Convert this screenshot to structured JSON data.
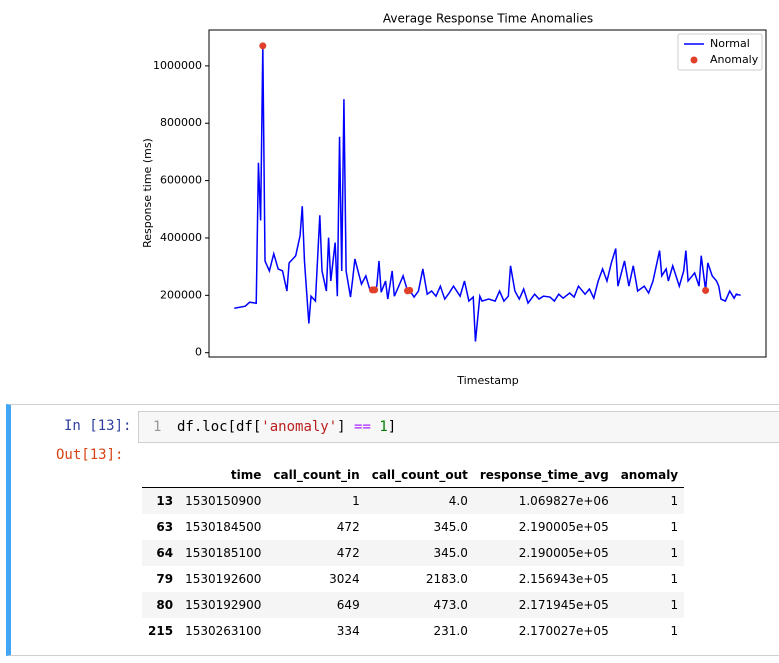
{
  "chart_data": {
    "type": "line",
    "title": "Average Response Time Anomalies",
    "x_label": "Timestamp",
    "y_label": "Response time (ms)",
    "xlim": [
      -11.55,
      242.55
    ],
    "ylim": [
      -15000,
      1125000
    ],
    "yticks": [
      0,
      200000,
      400000,
      600000,
      800000,
      1000000
    ],
    "legend": "upper right",
    "series": [
      {
        "name": "Normal",
        "type": "line",
        "color": "#0000ff",
        "x": [
          0,
          5,
          7,
          10,
          11,
          12,
          13,
          14,
          16,
          18,
          20,
          22,
          24,
          25,
          28,
          30,
          31,
          32,
          34,
          35,
          37,
          39,
          40,
          42,
          43,
          44,
          46,
          47,
          48,
          49,
          50,
          51,
          53,
          54,
          55,
          57,
          58,
          60,
          62,
          63,
          64,
          65,
          66,
          67,
          69,
          70,
          72,
          73,
          75,
          77,
          79,
          80,
          82,
          84,
          86,
          88,
          90,
          92,
          94,
          96,
          98,
          100,
          103,
          105,
          107,
          109,
          110,
          112,
          113,
          116,
          119,
          121,
          123,
          125,
          126,
          128,
          130,
          132,
          134,
          137,
          139,
          141,
          144,
          146,
          148,
          150,
          153,
          155,
          157,
          160,
          162,
          164,
          166,
          168,
          170,
          172,
          174,
          175,
          178,
          180,
          182,
          184,
          187,
          189,
          191,
          194,
          195,
          197,
          198,
          200,
          203,
          205,
          206,
          207,
          210,
          212,
          213,
          215,
          216,
          218,
          220,
          221,
          222,
          224,
          226,
          228,
          229,
          231
        ],
        "values": [
          155000,
          162000,
          176000,
          172500,
          662000,
          461000,
          1069827,
          320000,
          285000,
          345000,
          292000,
          285000,
          215000,
          313000,
          338000,
          408000,
          511000,
          320000,
          102000,
          197000,
          180000,
          479000,
          285000,
          215000,
          401000,
          250000,
          384000,
          197000,
          753000,
          285000,
          884000,
          285000,
          194000,
          257000,
          327000,
          268000,
          239000,
          268000,
          215000,
          219000.5,
          219000.5,
          232000,
          320000,
          211000,
          250000,
          187000,
          285000,
          197000,
          232000,
          268000,
          215694.3,
          217194.5,
          194000,
          215000,
          292000,
          204000,
          215000,
          197000,
          232000,
          187000,
          208000,
          232000,
          197000,
          250000,
          180000,
          194000,
          39000,
          197000,
          180000,
          187000,
          180000,
          215000,
          180000,
          197000,
          303000,
          215000,
          187000,
          222000,
          173000,
          204000,
          187000,
          197000,
          194000,
          180000,
          204000,
          190000,
          208000,
          194000,
          232000,
          204000,
          222000,
          190000,
          250000,
          292000,
          250000,
          313000,
          363000,
          232000,
          320000,
          232000,
          303000,
          215000,
          232000,
          208000,
          250000,
          356000,
          268000,
          292000,
          250000,
          303000,
          232000,
          285000,
          356000,
          250000,
          278000,
          232000,
          338000,
          217002.7,
          313000,
          268000,
          250000,
          232000,
          187000,
          180000,
          215000,
          190000,
          204000,
          200000
        ]
      },
      {
        "name": "Anomaly",
        "type": "scatter",
        "color": "#e0402a",
        "x": [
          13,
          63,
          64,
          79,
          80,
          215
        ],
        "values": [
          1069827,
          219000.5,
          219000.5,
          215694.3,
          217194.5,
          217002.7
        ]
      }
    ]
  },
  "cell": {
    "in_prompt": "In [13]:",
    "line_number": "1",
    "code_tokens": [
      "df.loc[df[",
      "'anomaly'",
      "]",
      "==",
      "1",
      "]"
    ],
    "out_prompt": "Out[13]:"
  },
  "table": {
    "columns": [
      "time",
      "call_count_in",
      "call_count_out",
      "response_time_avg",
      "anomaly"
    ],
    "rows": [
      [
        "13",
        "1530150900",
        "1",
        "4.0",
        "1.069827e+06",
        "1"
      ],
      [
        "63",
        "1530184500",
        "472",
        "345.0",
        "2.190005e+05",
        "1"
      ],
      [
        "64",
        "1530185100",
        "472",
        "345.0",
        "2.190005e+05",
        "1"
      ],
      [
        "79",
        "1530192600",
        "3024",
        "2183.0",
        "2.156943e+05",
        "1"
      ],
      [
        "80",
        "1530192900",
        "649",
        "473.0",
        "2.171945e+05",
        "1"
      ],
      [
        "215",
        "1530263100",
        "334",
        "231.0",
        "2.170027e+05",
        "1"
      ]
    ]
  }
}
